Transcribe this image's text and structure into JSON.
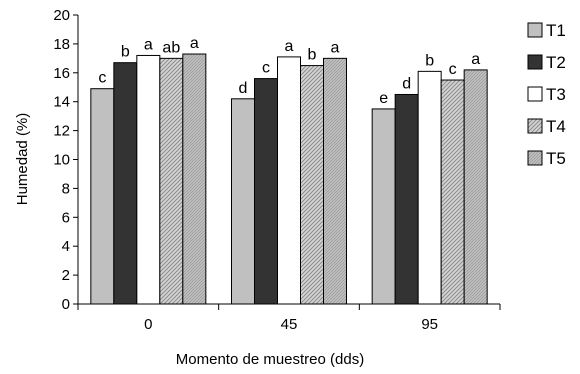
{
  "chart_data": {
    "type": "bar",
    "xlabel": "Momento de muestreo (dds)",
    "ylabel": "Humedad  (%)",
    "ylim": [
      0,
      20
    ],
    "yticks": [
      0,
      2,
      4,
      6,
      8,
      10,
      12,
      14,
      16,
      18,
      20
    ],
    "grid": false,
    "legend_position": "right",
    "categories": [
      "0",
      "45",
      "95"
    ],
    "series": [
      {
        "name": "T1",
        "values": [
          14.9,
          14.2,
          13.5
        ],
        "letters": [
          "c",
          "d",
          "e"
        ],
        "fill": "#c0c0c0",
        "pattern": "none"
      },
      {
        "name": "T2",
        "values": [
          16.7,
          15.6,
          14.5
        ],
        "letters": [
          "b",
          "c",
          "d"
        ],
        "fill": "#333333",
        "pattern": "none"
      },
      {
        "name": "T3",
        "values": [
          17.2,
          17.1,
          16.1
        ],
        "letters": [
          "a",
          "a",
          "b"
        ],
        "fill": "#ffffff",
        "pattern": "none"
      },
      {
        "name": "T4",
        "values": [
          17.0,
          16.5,
          15.5
        ],
        "letters": [
          "ab",
          "b",
          "c"
        ],
        "fill": "#c8c8c8",
        "pattern": "diagonal"
      },
      {
        "name": "T5",
        "values": [
          17.3,
          17.0,
          16.2
        ],
        "letters": [
          "a",
          "a",
          "a"
        ],
        "fill": "#c8c8c8",
        "pattern": "dense"
      }
    ]
  }
}
